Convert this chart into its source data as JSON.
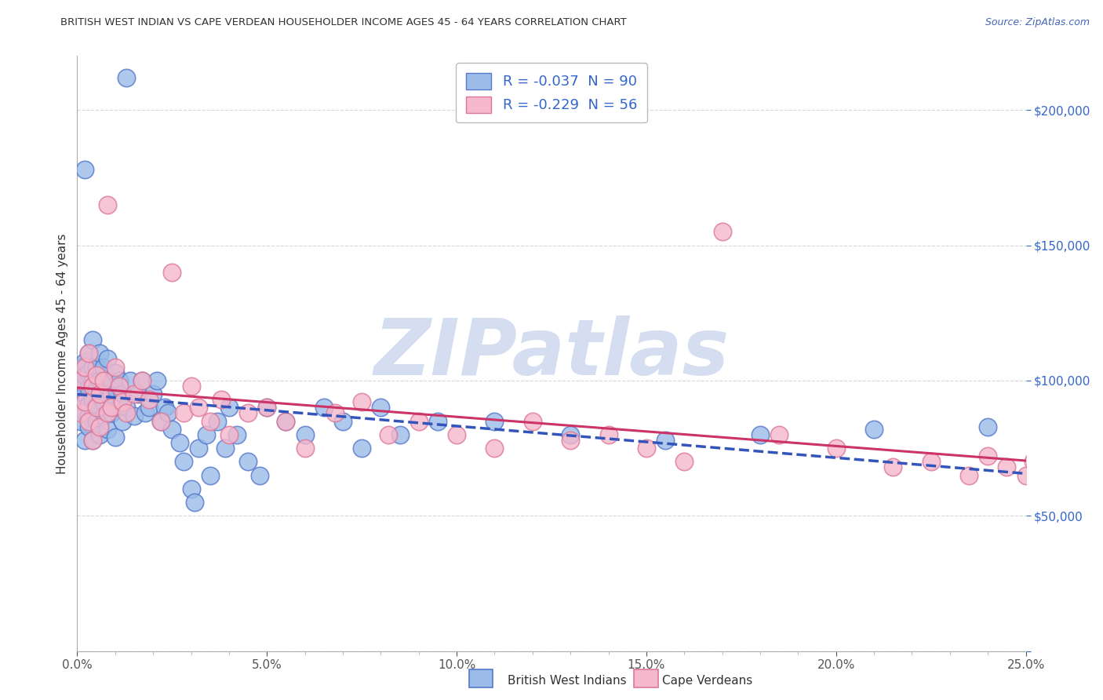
{
  "title": "BRITISH WEST INDIAN VS CAPE VERDEAN HOUSEHOLDER INCOME AGES 45 - 64 YEARS CORRELATION CHART",
  "source": "Source: ZipAtlas.com",
  "ylabel": "Householder Income Ages 45 - 64 years",
  "xlim": [
    0.0,
    0.25
  ],
  "ylim": [
    0,
    220000
  ],
  "xticks_major": [
    0.0,
    0.05,
    0.1,
    0.15,
    0.2,
    0.25
  ],
  "xtick_minor_step": 0.01,
  "yticks": [
    0,
    50000,
    100000,
    150000,
    200000
  ],
  "legend1_label": "R = -0.037  N = 90",
  "legend2_label": "R = -0.229  N = 56",
  "blue_fill": "#9bbce8",
  "blue_edge": "#5577cc",
  "pink_fill": "#f5b8cc",
  "pink_edge": "#dd7799",
  "blue_line_color": "#3355bb",
  "pink_line_color": "#cc3366",
  "watermark_text": "ZIPatlas",
  "watermark_color": "#d5ddf0",
  "bg_color": "#ffffff",
  "grid_color": "#d8d8d8",
  "title_color": "#333333",
  "source_color": "#4466bb",
  "yaxis_tick_color": "#3366cc",
  "xaxis_tick_color": "#555555",
  "R_blue": -0.037,
  "N_blue": 90,
  "R_pink": -0.229,
  "N_pink": 56,
  "blue_x": [
    0.001,
    0.001,
    0.001,
    0.001,
    0.001,
    0.002,
    0.002,
    0.002,
    0.002,
    0.002,
    0.002,
    0.002,
    0.002,
    0.003,
    0.003,
    0.003,
    0.003,
    0.003,
    0.003,
    0.004,
    0.004,
    0.004,
    0.004,
    0.004,
    0.004,
    0.005,
    0.005,
    0.005,
    0.005,
    0.006,
    0.006,
    0.006,
    0.006,
    0.007,
    0.007,
    0.007,
    0.008,
    0.008,
    0.008,
    0.009,
    0.009,
    0.009,
    0.01,
    0.01,
    0.011,
    0.011,
    0.012,
    0.012,
    0.013,
    0.013,
    0.014,
    0.015,
    0.016,
    0.017,
    0.018,
    0.019,
    0.02,
    0.021,
    0.022,
    0.023,
    0.024,
    0.025,
    0.027,
    0.028,
    0.03,
    0.031,
    0.032,
    0.034,
    0.035,
    0.037,
    0.039,
    0.04,
    0.042,
    0.045,
    0.048,
    0.05,
    0.055,
    0.06,
    0.065,
    0.07,
    0.075,
    0.08,
    0.085,
    0.095,
    0.11,
    0.13,
    0.155,
    0.18,
    0.21,
    0.24
  ],
  "blue_y": [
    95000,
    100000,
    105000,
    85000,
    90000,
    92000,
    98000,
    88000,
    102000,
    78000,
    107000,
    95000,
    178000,
    91000,
    87000,
    103000,
    97000,
    83000,
    110000,
    93000,
    89000,
    105000,
    78000,
    115000,
    100000,
    97000,
    91000,
    105000,
    85000,
    95000,
    80000,
    100000,
    110000,
    92000,
    87000,
    105000,
    98000,
    82000,
    108000,
    95000,
    88000,
    100000,
    103000,
    79000,
    90000,
    100000,
    95000,
    85000,
    90000,
    212000,
    100000,
    87000,
    95000,
    100000,
    88000,
    90000,
    95000,
    100000,
    85000,
    90000,
    88000,
    82000,
    77000,
    70000,
    60000,
    55000,
    75000,
    80000,
    65000,
    85000,
    75000,
    90000,
    80000,
    70000,
    65000,
    90000,
    85000,
    80000,
    90000,
    85000,
    75000,
    90000,
    80000,
    85000,
    85000,
    80000,
    78000,
    80000,
    82000,
    83000
  ],
  "pink_x": [
    0.001,
    0.001,
    0.002,
    0.002,
    0.003,
    0.003,
    0.004,
    0.004,
    0.005,
    0.005,
    0.006,
    0.006,
    0.007,
    0.008,
    0.008,
    0.009,
    0.01,
    0.011,
    0.012,
    0.013,
    0.015,
    0.017,
    0.019,
    0.022,
    0.025,
    0.028,
    0.03,
    0.032,
    0.035,
    0.038,
    0.04,
    0.045,
    0.05,
    0.055,
    0.06,
    0.068,
    0.075,
    0.082,
    0.09,
    0.1,
    0.11,
    0.12,
    0.13,
    0.14,
    0.15,
    0.16,
    0.17,
    0.185,
    0.2,
    0.215,
    0.225,
    0.235,
    0.24,
    0.245,
    0.25,
    0.252
  ],
  "pink_y": [
    100000,
    88000,
    105000,
    92000,
    110000,
    85000,
    98000,
    78000,
    102000,
    90000,
    95000,
    83000,
    100000,
    165000,
    88000,
    90000,
    105000,
    98000,
    92000,
    88000,
    95000,
    100000,
    93000,
    85000,
    140000,
    88000,
    98000,
    90000,
    85000,
    93000,
    80000,
    88000,
    90000,
    85000,
    75000,
    88000,
    92000,
    80000,
    85000,
    80000,
    75000,
    85000,
    78000,
    80000,
    75000,
    70000,
    155000,
    80000,
    75000,
    68000,
    70000,
    65000,
    72000,
    68000,
    65000,
    70000
  ]
}
